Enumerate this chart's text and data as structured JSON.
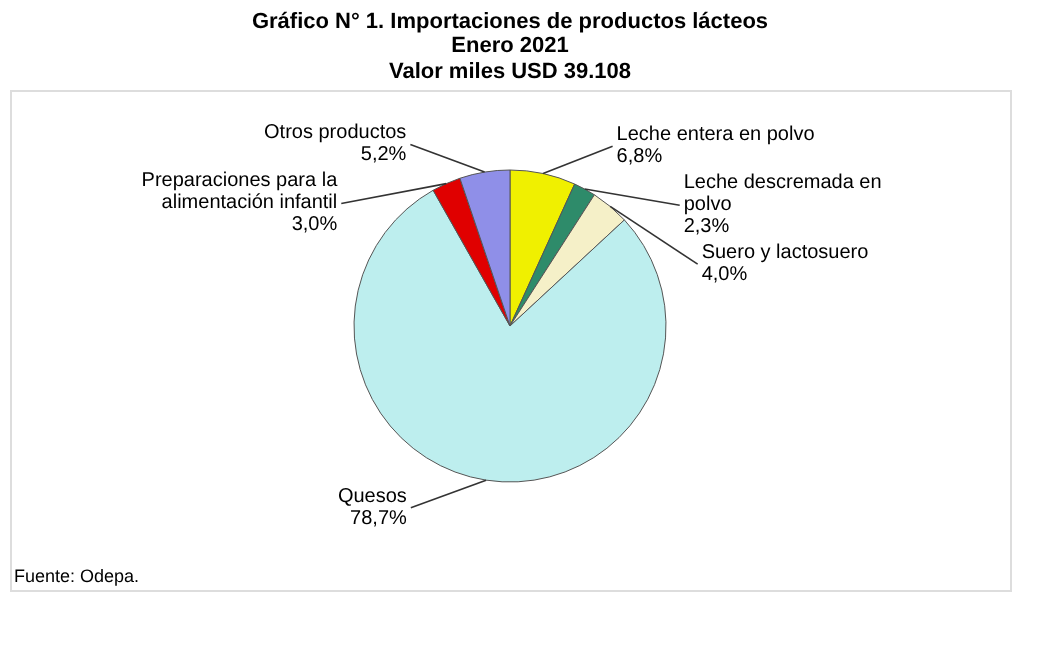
{
  "chart_data": {
    "type": "pie",
    "title": "Gráfico N° 1. Importaciones de productos lácteos",
    "subtitle": "Enero 2021\nValor miles USD 39.108",
    "categories": [
      "Leche entera en polvo",
      "Leche descremada en polvo",
      "Suero y lactosuero",
      "Quesos",
      "Preparaciones para la alimentación infantil",
      "Otros productos"
    ],
    "values": [
      6.8,
      2.3,
      4.0,
      78.7,
      3.0,
      5.2
    ],
    "colors": [
      "#f0f000",
      "#2e8b6a",
      "#f5f0c8",
      "#bdeeee",
      "#e00000",
      "#8f8fe8"
    ],
    "value_labels": [
      "6,8%",
      "2,3%",
      "4,0%",
      "78,7%",
      "3,0%",
      "5,2%"
    ],
    "annotations": [
      "Fuente: Odepa."
    ]
  }
}
